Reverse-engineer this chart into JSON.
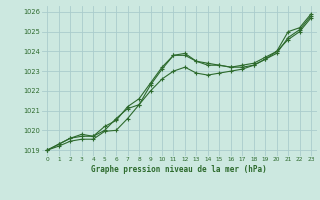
{
  "xlabel": "Graphe pression niveau de la mer (hPa)",
  "bg_color": "#cce8e0",
  "grid_color": "#aacccc",
  "line_color": "#2d6a2d",
  "ylim": [
    1018.7,
    1026.3
  ],
  "xlim": [
    -0.5,
    23.5
  ],
  "yticks": [
    1019,
    1020,
    1021,
    1022,
    1023,
    1024,
    1025,
    1026
  ],
  "xticks": [
    0,
    1,
    2,
    3,
    4,
    5,
    6,
    7,
    8,
    9,
    10,
    11,
    12,
    13,
    14,
    15,
    16,
    17,
    18,
    19,
    20,
    21,
    22,
    23
  ],
  "series1_x": [
    0,
    1,
    2,
    3,
    4,
    5,
    6,
    7,
    8,
    9,
    10,
    11,
    12,
    13,
    14,
    15,
    16,
    17,
    18,
    19,
    20,
    21,
    22,
    23
  ],
  "series1_y": [
    1019.0,
    1019.3,
    1019.6,
    1019.7,
    1019.7,
    1020.0,
    1020.6,
    1021.1,
    1021.3,
    1022.3,
    1023.1,
    1023.8,
    1023.9,
    1023.5,
    1023.3,
    1023.3,
    1023.2,
    1023.2,
    1023.3,
    1023.6,
    1023.9,
    1024.7,
    1025.1,
    1025.8
  ],
  "series2_x": [
    0,
    1,
    2,
    3,
    4,
    5,
    6,
    7,
    8,
    9,
    10,
    11,
    12,
    13,
    14,
    15,
    16,
    17,
    18,
    19,
    20,
    21,
    22,
    23
  ],
  "series2_y": [
    1019.0,
    1019.2,
    1019.45,
    1019.55,
    1019.55,
    1019.95,
    1020.0,
    1020.6,
    1021.3,
    1022.0,
    1022.6,
    1023.0,
    1023.2,
    1022.9,
    1022.8,
    1022.9,
    1023.0,
    1023.1,
    1023.3,
    1023.6,
    1024.0,
    1025.0,
    1025.2,
    1025.9
  ],
  "series3_x": [
    0,
    1,
    2,
    3,
    4,
    5,
    6,
    7,
    8,
    9,
    10,
    11,
    12,
    13,
    14,
    15,
    16,
    17,
    18,
    19,
    20,
    21,
    22,
    23
  ],
  "series3_y": [
    1019.0,
    1019.3,
    1019.6,
    1019.8,
    1019.7,
    1020.2,
    1020.5,
    1021.2,
    1021.6,
    1022.4,
    1023.2,
    1023.8,
    1023.8,
    1023.5,
    1023.4,
    1023.3,
    1023.2,
    1023.3,
    1023.4,
    1023.7,
    1024.0,
    1024.6,
    1025.0,
    1025.7
  ],
  "figwidth": 3.2,
  "figheight": 2.0,
  "dpi": 100
}
